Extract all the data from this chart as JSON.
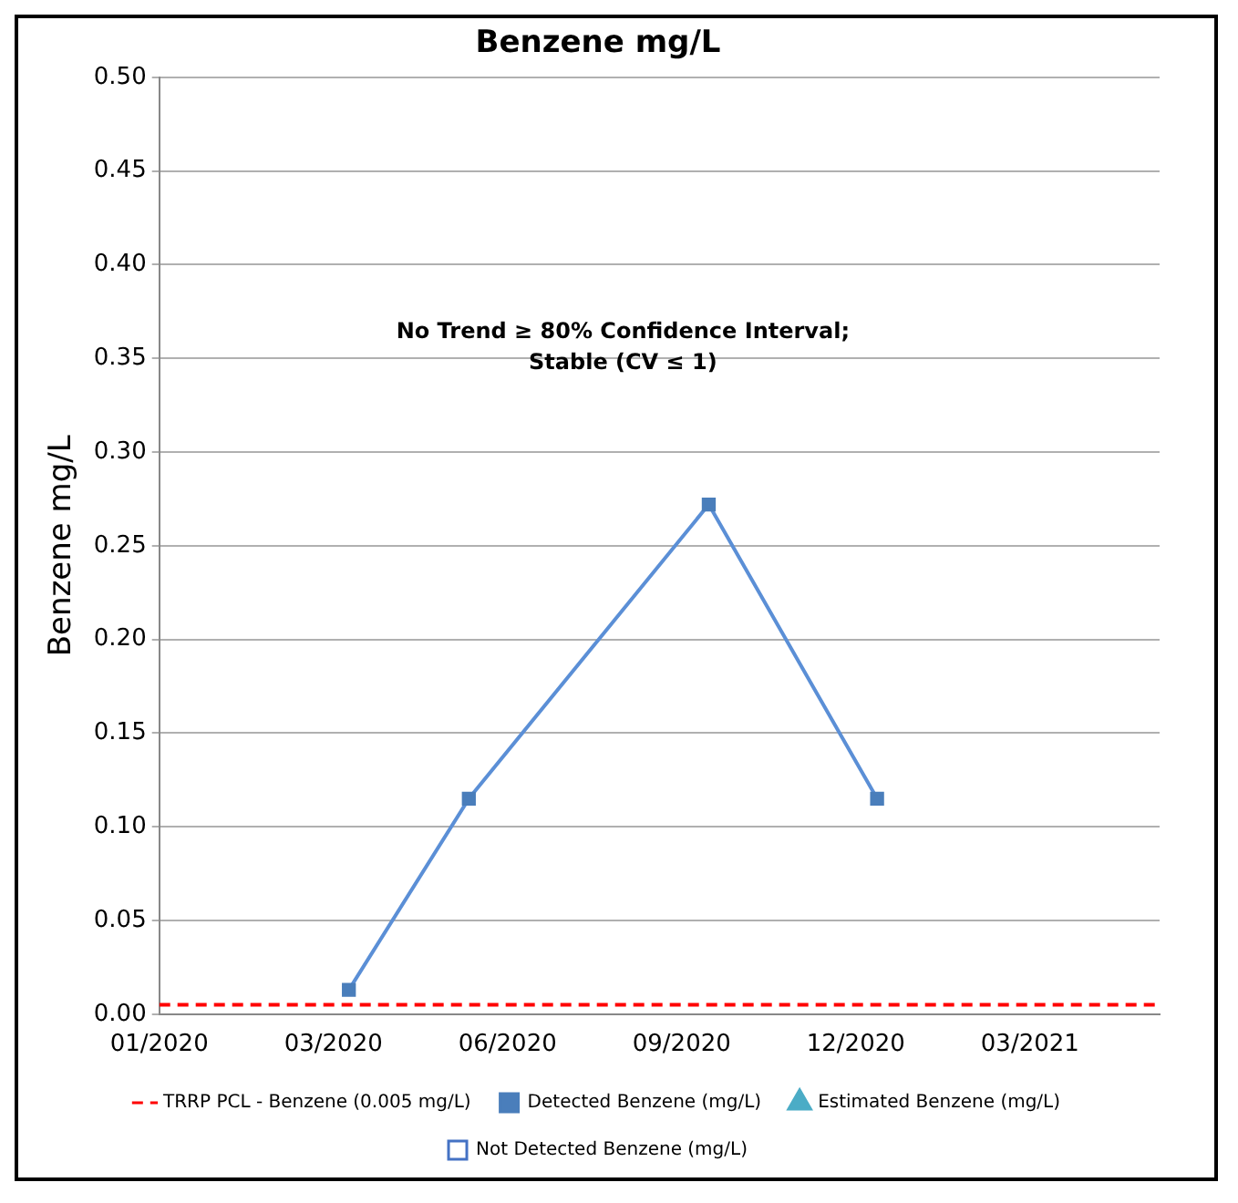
{
  "chart_data": {
    "type": "line",
    "title": "Benzene mg/L",
    "ylabel": "Benzene mg/L",
    "annotations": [
      "No Trend ≥ 80% Confidence Interval;\nStable (CV ≤ 1)"
    ],
    "xlim": [
      "2020-01-01",
      "2021-06-01"
    ],
    "xticks": [
      {
        "value": "2020-01-01",
        "label": "01/2020"
      },
      {
        "value": "2020-03-31",
        "label": "03/2020"
      },
      {
        "value": "2020-06-29",
        "label": "06/2020"
      },
      {
        "value": "2020-09-27",
        "label": "09/2020"
      },
      {
        "value": "2020-12-26",
        "label": "12/2020"
      },
      {
        "value": "2021-03-26",
        "label": "03/2021"
      }
    ],
    "ylim": [
      0,
      0.5
    ],
    "yticks": [
      {
        "value": 0,
        "label": "0.00"
      },
      {
        "value": 0.05,
        "label": "0.05"
      },
      {
        "value": 0.1,
        "label": "0.10"
      },
      {
        "value": 0.15,
        "label": "0.15"
      },
      {
        "value": 0.2,
        "label": "0.20"
      },
      {
        "value": 0.25,
        "label": "0.25"
      },
      {
        "value": 0.3,
        "label": "0.30"
      },
      {
        "value": 0.35,
        "label": "0.35"
      },
      {
        "value": 0.4,
        "label": "0.40"
      },
      {
        "value": 0.45,
        "label": "0.45"
      },
      {
        "value": 0.5,
        "label": "0.50"
      }
    ],
    "grid": "y",
    "legend": "bottom",
    "ref_lines": [
      {
        "axis": "y",
        "value": 0.005,
        "label": "TRRP PCL - Benzene (0.005 mg/L)",
        "color": "#ff0000",
        "line_style": "dashed"
      }
    ],
    "series": [
      {
        "name": "Detected Benzene (mg/L)",
        "color": "#4a7ebb",
        "marker": "square",
        "x": [
          "2020-04-08",
          "2020-06-09",
          "2020-10-11",
          "2021-01-06"
        ],
        "values": [
          0.013,
          0.115,
          0.272,
          0.115
        ]
      },
      {
        "name": "Estimated Benzene (mg/L)",
        "color": "#4bacc6",
        "marker": "triangle"
      },
      {
        "name": "Not Detected Benzene (mg/L)",
        "color": "#4472c4",
        "marker": "square"
      }
    ]
  }
}
